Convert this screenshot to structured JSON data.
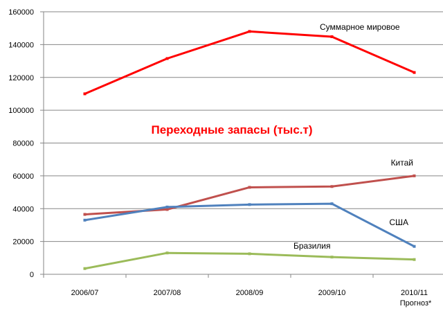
{
  "chart_data": {
    "type": "line",
    "title": "Переходные запасы (тыс.т)",
    "categories": [
      "2006/07",
      "2007/08",
      "2008/09",
      "2009/10",
      "2010/11"
    ],
    "category_sublabels": [
      "",
      "",
      "",
      "",
      "Прогноз*"
    ],
    "ylim": [
      0,
      160000
    ],
    "y_ticks": [
      "0",
      "20000",
      "40000",
      "60000",
      "80000",
      "100000",
      "120000",
      "140000",
      "160000"
    ],
    "grid": true,
    "series": [
      {
        "name": "Суммарное мировое",
        "color": "#ff0000",
        "values": [
          110000,
          131500,
          148000,
          144800,
          123000
        ]
      },
      {
        "name": "Китай",
        "color": "#c0504d",
        "values": [
          36500,
          39500,
          53000,
          53500,
          60000
        ]
      },
      {
        "name": "США",
        "color": "#4f81bd",
        "values": [
          33000,
          41000,
          42500,
          43000,
          17000
        ]
      },
      {
        "name": "Бразилия",
        "color": "#9bbb59",
        "values": [
          3500,
          13000,
          12500,
          10500,
          9000
        ]
      }
    ],
    "colors": {
      "title": "#ff0000",
      "grid": "#868686",
      "axis": "#868686"
    }
  }
}
